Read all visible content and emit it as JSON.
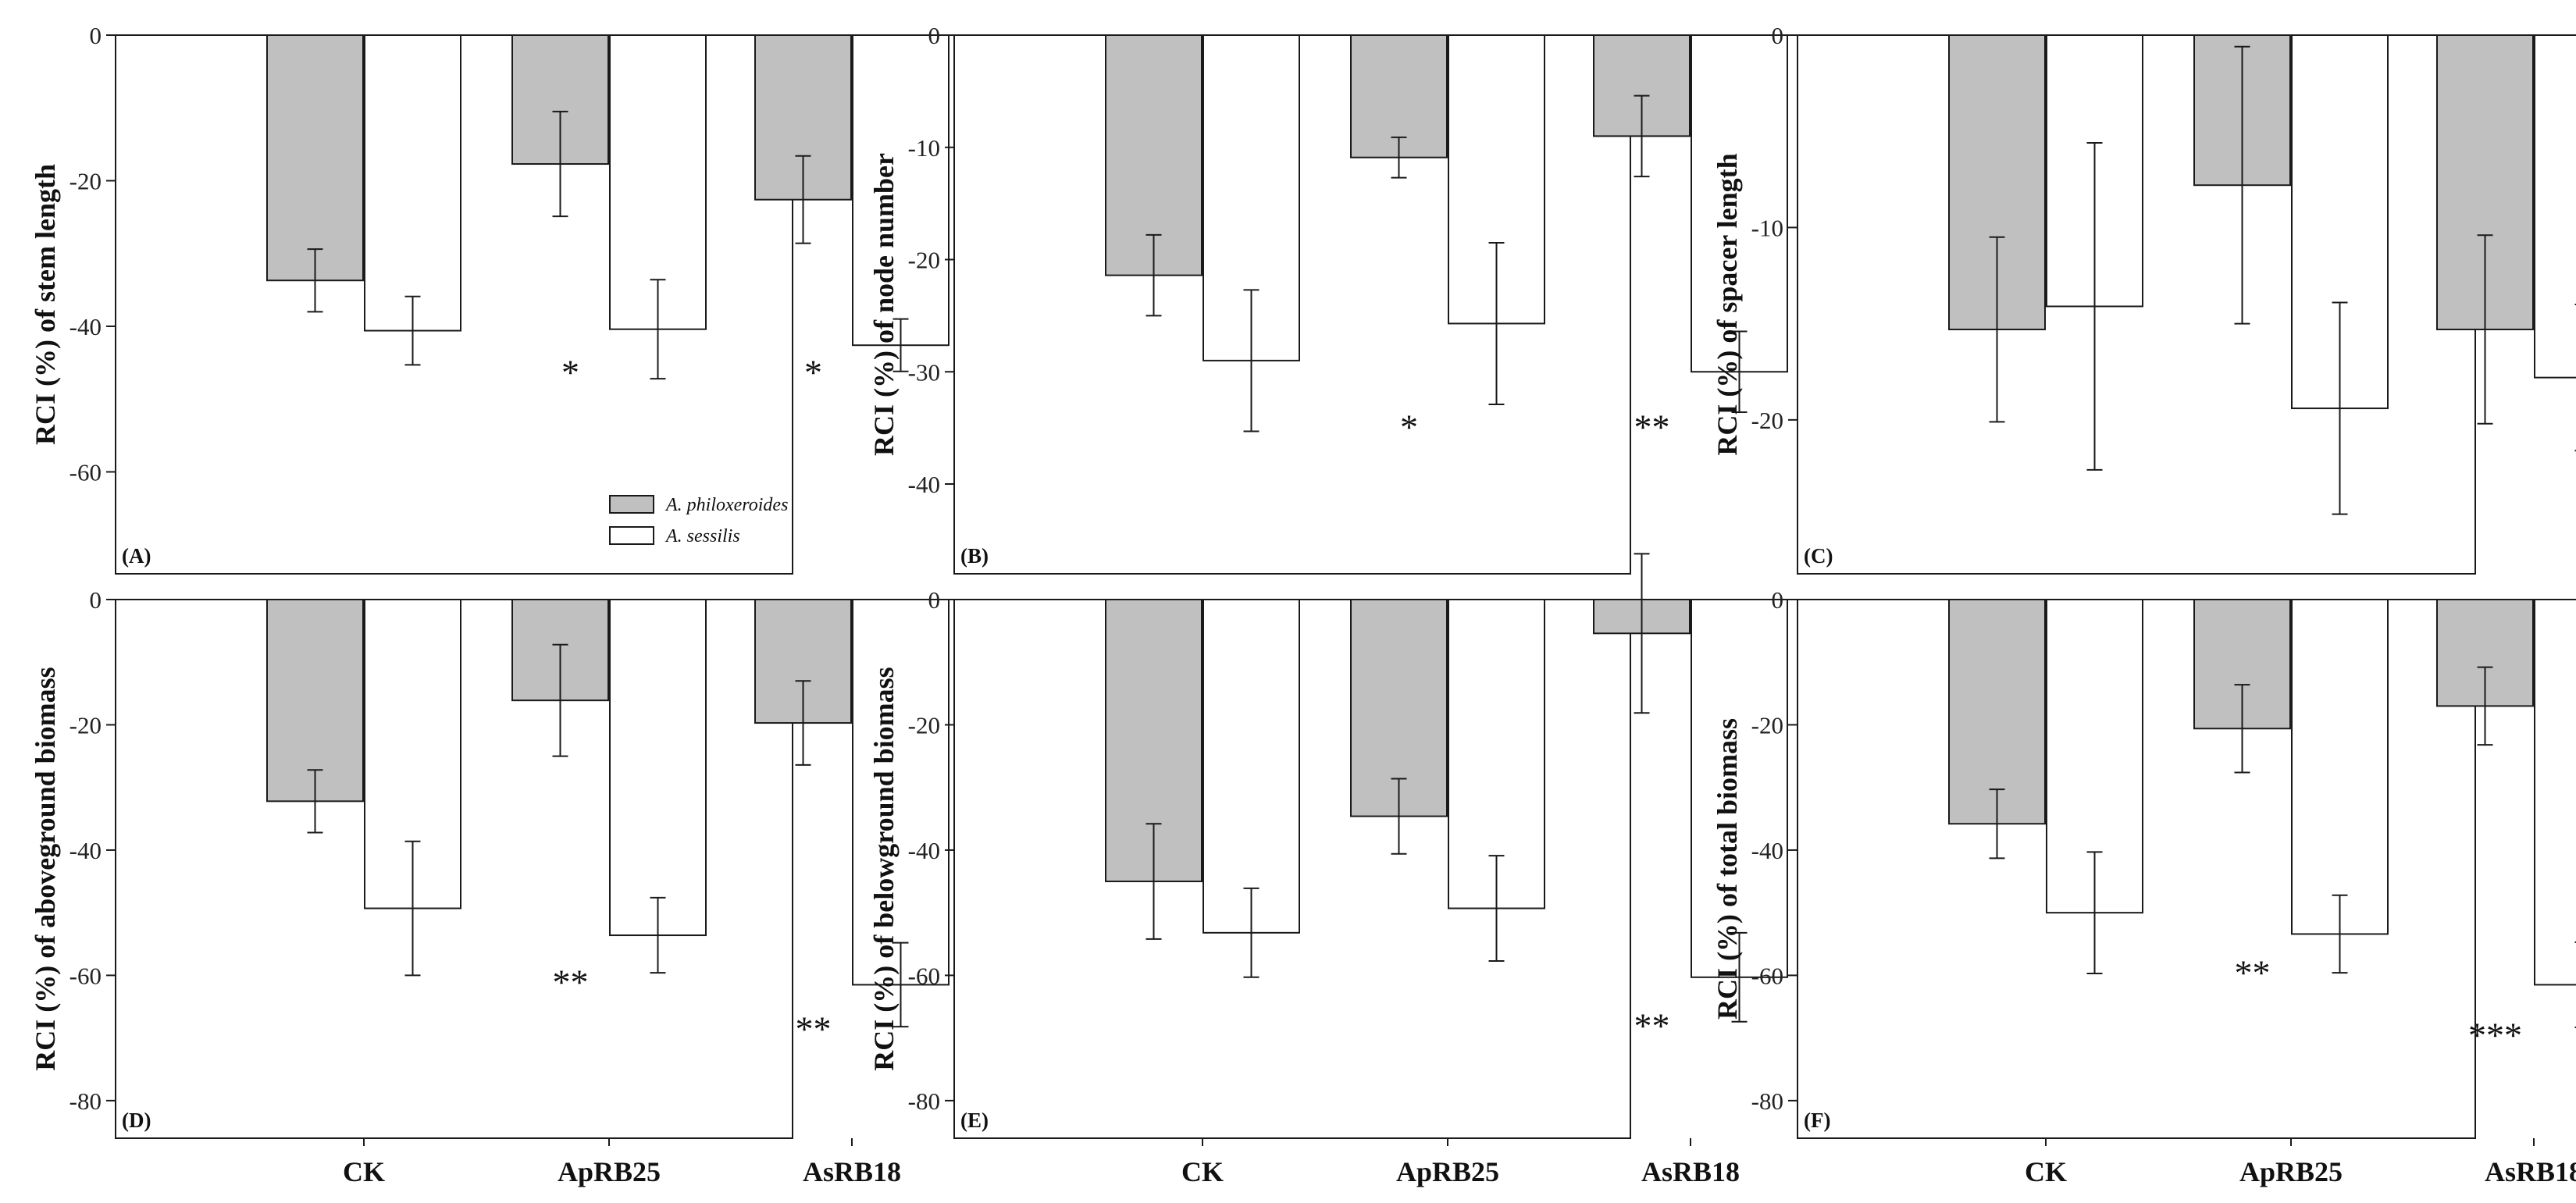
{
  "colors": {
    "philoxeroides": "#c0c0c0",
    "sessilis": "#ffffff",
    "stroke": "#1a1a1a"
  },
  "legend": {
    "items": [
      "A. philoxeroides",
      "A. sessilis"
    ]
  },
  "chart_data": [
    {
      "type": "bar",
      "panel_label": "(A)",
      "ylabel": "RCI (%) of stem length",
      "categories": [
        "CK",
        "ApRB25",
        "AsRB18"
      ],
      "ylim": [
        -74,
        0
      ],
      "yticks": [
        "0",
        "-20",
        "-40",
        "-60"
      ],
      "ytick_values": [
        0,
        -20,
        -40,
        -60
      ],
      "series": [
        {
          "name": "A. philoxeroides",
          "values": [
            -33.7,
            -17.7,
            -22.6
          ],
          "errors": [
            4.3,
            7.2,
            6.0
          ]
        },
        {
          "name": "A. sessilis",
          "values": [
            -40.6,
            -40.4,
            -42.6
          ],
          "errors": [
            4.7,
            6.8,
            3.6
          ]
        }
      ],
      "significance": [
        "",
        "*",
        "*"
      ],
      "sig_values": [
        0,
        -48,
        -48
      ],
      "show_legend": true
    },
    {
      "type": "bar",
      "panel_label": "(B)",
      "ylabel": "RCI (%) of node number",
      "categories": [
        "CK",
        "ApRB25",
        "AsRB18"
      ],
      "ylim": [
        -48,
        0
      ],
      "yticks": [
        "0",
        "-10",
        "-20",
        "-30",
        "-40"
      ],
      "ytick_values": [
        0,
        -10,
        -20,
        -30,
        -40
      ],
      "series": [
        {
          "name": "A. philoxeroides",
          "values": [
            -21.4,
            -10.9,
            -9.0
          ],
          "errors": [
            3.6,
            1.8,
            3.6
          ]
        },
        {
          "name": "A. sessilis",
          "values": [
            -29.0,
            -25.7,
            -30.0
          ],
          "errors": [
            6.3,
            7.2,
            3.6
          ]
        }
      ],
      "significance": [
        "",
        "*",
        "**"
      ],
      "sig_values": [
        0,
        -36,
        -36
      ],
      "show_legend": false
    },
    {
      "type": "bar",
      "panel_label": "(C)",
      "ylabel": "RCI (%) of spacer length",
      "categories": [
        "CK",
        "ApRB25",
        "AsRB18"
      ],
      "ylim": [
        -28,
        0
      ],
      "yticks": [
        "0",
        "-10",
        "-20"
      ],
      "ytick_values": [
        0,
        -10,
        -20
      ],
      "series": [
        {
          "name": "A. philoxeroides",
          "values": [
            -15.3,
            -7.8,
            -15.3
          ],
          "errors": [
            4.8,
            7.2,
            4.9
          ]
        },
        {
          "name": "A. sessilis",
          "values": [
            -14.1,
            -19.4,
            -17.8
          ],
          "errors": [
            8.5,
            5.5,
            3.8
          ]
        }
      ],
      "significance": [
        "",
        "",
        ""
      ],
      "sig_values": [
        0,
        0,
        0
      ],
      "show_legend": false
    },
    {
      "type": "bar",
      "panel_label": "(D)",
      "ylabel": "RCI (%) of aboveground biomass",
      "categories": [
        "CK",
        "ApRB25",
        "AsRB18"
      ],
      "ylim": [
        -86,
        0
      ],
      "yticks": [
        "0",
        "-20",
        "-40",
        "-60",
        "-80"
      ],
      "ytick_values": [
        0,
        -20,
        -40,
        -60,
        -80
      ],
      "series": [
        {
          "name": "A. philoxeroides",
          "values": [
            -32.2,
            -16.1,
            -19.7
          ],
          "errors": [
            5.0,
            8.9,
            6.7
          ]
        },
        {
          "name": "A. sessilis",
          "values": [
            -49.3,
            -53.6,
            -61.5
          ],
          "errors": [
            10.7,
            6.0,
            6.7
          ]
        }
      ],
      "significance": [
        "",
        "**",
        "**"
      ],
      "sig_values": [
        0,
        -63,
        -70.5
      ],
      "show_legend": false
    },
    {
      "type": "bar",
      "panel_label": "(E)",
      "ylabel": "RCI (%) of belowground biomass",
      "categories": [
        "CK",
        "ApRB25",
        "AsRB18"
      ],
      "ylim": [
        -86,
        0
      ],
      "yticks": [
        "0",
        "-20",
        "-40",
        "-60",
        "-80"
      ],
      "ytick_values": [
        0,
        -20,
        -40,
        -60,
        -80
      ],
      "series": [
        {
          "name": "A. philoxeroides",
          "values": [
            -45.0,
            -34.6,
            -5.4
          ],
          "errors": [
            9.2,
            6.0,
            12.7
          ]
        },
        {
          "name": "A. sessilis",
          "values": [
            -53.2,
            -49.3,
            -60.3
          ],
          "errors": [
            7.1,
            8.4,
            7.1
          ]
        }
      ],
      "significance": [
        "",
        "",
        "**"
      ],
      "sig_values": [
        0,
        0,
        -70
      ],
      "show_legend": false
    },
    {
      "type": "bar",
      "panel_label": "(F)",
      "ylabel": "RCI (%) of total biomass",
      "categories": [
        "CK",
        "ApRB25",
        "AsRB18"
      ],
      "ylim": [
        -86,
        0
      ],
      "yticks": [
        "0",
        "-20",
        "-40",
        "-60",
        "-80"
      ],
      "ytick_values": [
        0,
        -20,
        -40,
        -60,
        -80
      ],
      "series": [
        {
          "name": "A. philoxeroides",
          "values": [
            -35.8,
            -20.6,
            -17.0
          ],
          "errors": [
            5.5,
            7.0,
            6.2
          ]
        },
        {
          "name": "A. sessilis",
          "values": [
            -50.0,
            -53.4,
            -61.5
          ],
          "errors": [
            9.7,
            6.2,
            6.8
          ]
        }
      ],
      "significance": [
        "",
        "**",
        "***"
      ],
      "sig_values": [
        0,
        -61.5,
        -71.5
      ],
      "show_legend": false
    }
  ]
}
